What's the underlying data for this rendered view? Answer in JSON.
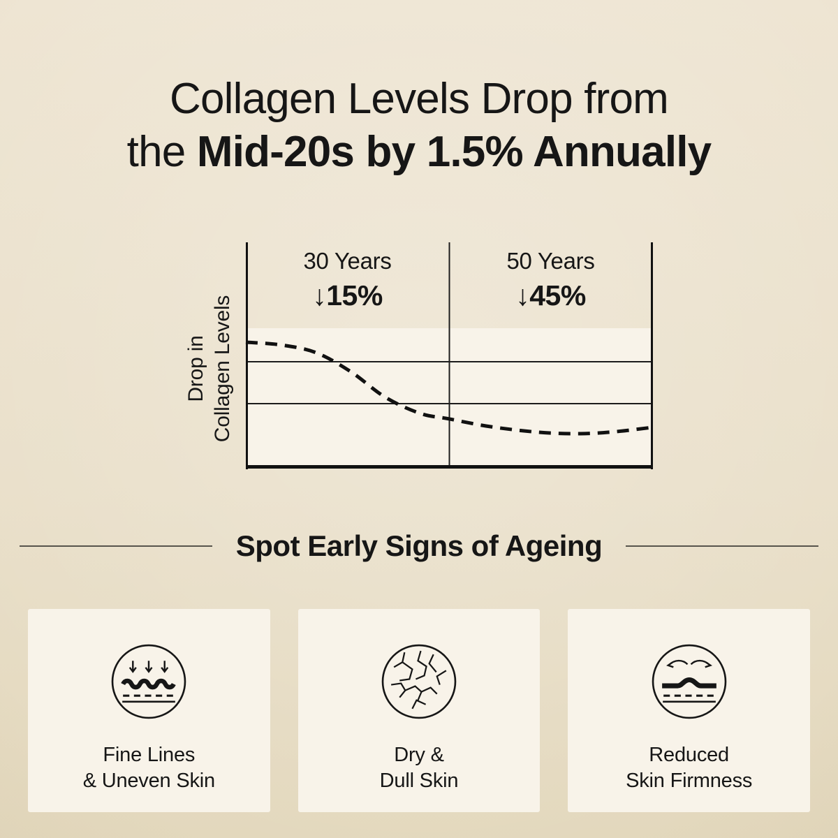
{
  "title": {
    "line1": "Collagen Levels Drop from",
    "line2_regular": "the ",
    "line2_bold": "Mid-20s by 1.5% Annually"
  },
  "chart": {
    "y_axis_label_line1": "Drop in",
    "y_axis_label_line2": "Collagen Levels",
    "columns": [
      {
        "age": "30 Years",
        "drop": "↓15%"
      },
      {
        "age": "50 Years",
        "drop": "↓45%"
      }
    ]
  },
  "chart_data": {
    "type": "line",
    "title": "Collagen Levels Drop from the Mid-20s by 1.5% Annually",
    "ylabel": "Drop in Collagen Levels",
    "xlabel": "",
    "x_sections": [
      "30 Years",
      "50 Years"
    ],
    "annotations": [
      {
        "section": "30 Years",
        "value": "↓15%",
        "drop_percent": 15
      },
      {
        "section": "50 Years",
        "value": "↓45%",
        "drop_percent": 45
      }
    ],
    "annual_drop_percent": 1.5,
    "line_style": "dashed",
    "grid": true,
    "gridlines_norm_y": [
      0.526,
      0.711
    ],
    "section_divider_norm_x": 0.5,
    "series": [
      {
        "name": "Collagen level",
        "curve_norm": [
          [
            0,
            0.44
          ],
          [
            0.086,
            0.452
          ],
          [
            0.172,
            0.486
          ],
          [
            0.257,
            0.569
          ],
          [
            0.343,
            0.683
          ],
          [
            0.429,
            0.754
          ],
          [
            0.499,
            0.778
          ],
          [
            0.6,
            0.812
          ],
          [
            0.72,
            0.837
          ],
          [
            0.823,
            0.843
          ],
          [
            0.909,
            0.834
          ],
          [
            1,
            0.815
          ]
        ]
      }
    ]
  },
  "section": {
    "heading": "Spot Early Signs of Ageing"
  },
  "cards": [
    {
      "icon": "fine-lines-icon",
      "label1": "Fine Lines",
      "label2": "& Uneven Skin"
    },
    {
      "icon": "dry-skin-icon",
      "label1": "Dry &",
      "label2": "Dull Skin"
    },
    {
      "icon": "firmness-icon",
      "label1": "Reduced",
      "label2": "Skin Firmness"
    }
  ],
  "colors": {
    "background": "#EAE0CB",
    "panel": "#F8F3E9",
    "ink": "#161616",
    "rule": "#57544c"
  }
}
